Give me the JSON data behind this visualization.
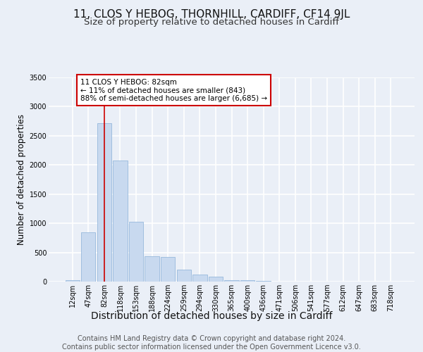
{
  "title": "11, CLOS Y HEBOG, THORNHILL, CARDIFF, CF14 9JL",
  "subtitle": "Size of property relative to detached houses in Cardiff",
  "xlabel": "Distribution of detached houses by size in Cardiff",
  "ylabel": "Number of detached properties",
  "categories": [
    "12sqm",
    "47sqm",
    "82sqm",
    "118sqm",
    "153sqm",
    "188sqm",
    "224sqm",
    "259sqm",
    "294sqm",
    "330sqm",
    "365sqm",
    "400sqm",
    "436sqm",
    "471sqm",
    "506sqm",
    "541sqm",
    "577sqm",
    "612sqm",
    "647sqm",
    "683sqm",
    "718sqm"
  ],
  "values": [
    25,
    850,
    2720,
    2080,
    1020,
    430,
    420,
    200,
    120,
    80,
    30,
    20,
    10,
    5,
    2,
    1,
    1,
    0,
    0,
    0,
    0
  ],
  "bar_color": "#c8d9ef",
  "bar_edge_color": "#8ab0d8",
  "highlight_index": 2,
  "highlight_line_color": "#cc0000",
  "annotation_text": "11 CLOS Y HEBOG: 82sqm\n← 11% of detached houses are smaller (843)\n88% of semi-detached houses are larger (6,685) →",
  "annotation_box_color": "#ffffff",
  "annotation_border_color": "#cc0000",
  "ylim": [
    0,
    3500
  ],
  "yticks": [
    0,
    500,
    1000,
    1500,
    2000,
    2500,
    3000,
    3500
  ],
  "bg_color": "#eaeff7",
  "plot_bg_color": "#eaeff7",
  "grid_color": "#ffffff",
  "footer_line1": "Contains HM Land Registry data © Crown copyright and database right 2024.",
  "footer_line2": "Contains public sector information licensed under the Open Government Licence v3.0.",
  "title_fontsize": 11,
  "subtitle_fontsize": 9.5,
  "xlabel_fontsize": 10,
  "ylabel_fontsize": 8.5,
  "tick_fontsize": 7,
  "footer_fontsize": 7
}
